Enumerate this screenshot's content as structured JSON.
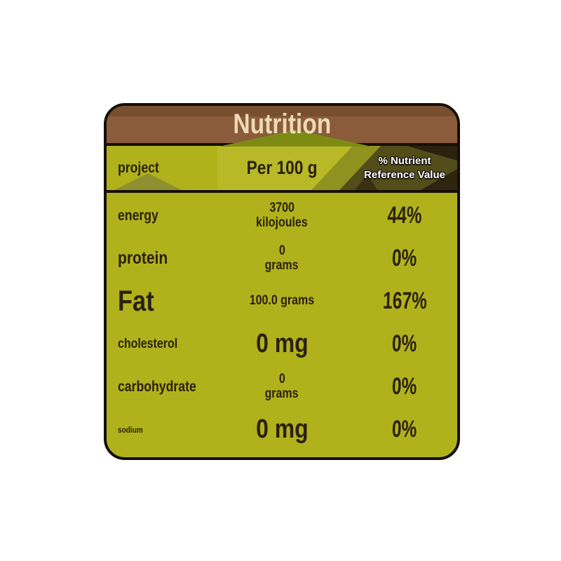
{
  "nutrition": {
    "title": "Nutrition",
    "columns": {
      "item": "project",
      "amount": "Per 100 g",
      "nrv": "% Nutrient Reference Value"
    },
    "rows": [
      {
        "name": "energy",
        "amount_line1": "3700",
        "amount_line2": "kilojoules",
        "nrv": "44%"
      },
      {
        "name": "protein",
        "amount_line1": "0",
        "amount_line2": "grams",
        "nrv": "0%"
      },
      {
        "name": "Fat",
        "amount_line1": "100.0 grams",
        "amount_line2": "",
        "nrv": "167%"
      },
      {
        "name": "cholesterol",
        "amount_line1": "0 mg",
        "amount_line2": "",
        "nrv": "0%"
      },
      {
        "name": "carbohydrate",
        "amount_line1": "0",
        "amount_line2": "grams",
        "nrv": "0%"
      },
      {
        "name": "sodium",
        "amount_line1": "0 mg",
        "amount_line2": "",
        "nrv": "0%"
      }
    ]
  },
  "colors": {
    "background": "#ffffff",
    "card_olive": "#b1b21b",
    "header_brown": "#8a5c3b",
    "header_brown_dark": "#7a4e31",
    "title_cream": "#eddab6",
    "text_dark": "#2b2011",
    "nrv_panel_dark": "#524d19",
    "nrv_panel_darker": "#2a210f",
    "nrv_header_text": "#ffffff",
    "border_black": "#150f08"
  }
}
